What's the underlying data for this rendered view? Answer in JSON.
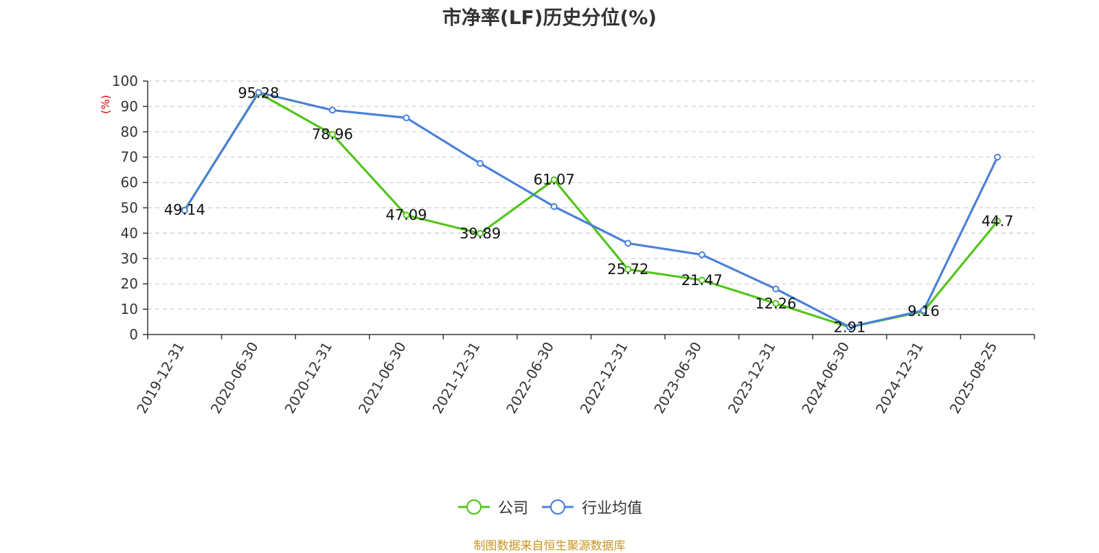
{
  "chart_data": {
    "type": "line",
    "title": "市净率(LF)历史分位(%)",
    "ylabel": "(%)",
    "xlabel": "",
    "ylim": [
      0,
      100
    ],
    "yticks": [
      0,
      10,
      20,
      30,
      40,
      50,
      60,
      70,
      80,
      90,
      100
    ],
    "grid": true,
    "legend_position": "bottom",
    "categories": [
      "2019-12-31",
      "2020-06-30",
      "2020-12-31",
      "2021-06-30",
      "2021-12-31",
      "2022-06-30",
      "2022-12-31",
      "2023-06-30",
      "2023-12-31",
      "2024-06-30",
      "2024-12-31",
      "2025-08-25"
    ],
    "series": [
      {
        "name": "公司",
        "color": "#52c41a",
        "values": [
          49.14,
          95.28,
          78.96,
          47.09,
          39.89,
          61.07,
          25.72,
          21.47,
          12.26,
          2.91,
          9.16,
          44.7
        ],
        "labels": [
          "49.14",
          "95.28",
          "78.96",
          "47.09",
          "39.89",
          "61.07",
          "25.72",
          "21.47",
          "12.26",
          "2.91",
          "9.16",
          "44.7"
        ]
      },
      {
        "name": "行业均值",
        "color": "#4a80d9",
        "values": [
          49,
          95.5,
          88.5,
          85.5,
          67.5,
          50.5,
          36,
          31.5,
          18,
          3,
          9.5,
          70
        ]
      }
    ],
    "source_note": "制图数据来自恒生聚源数据库"
  }
}
